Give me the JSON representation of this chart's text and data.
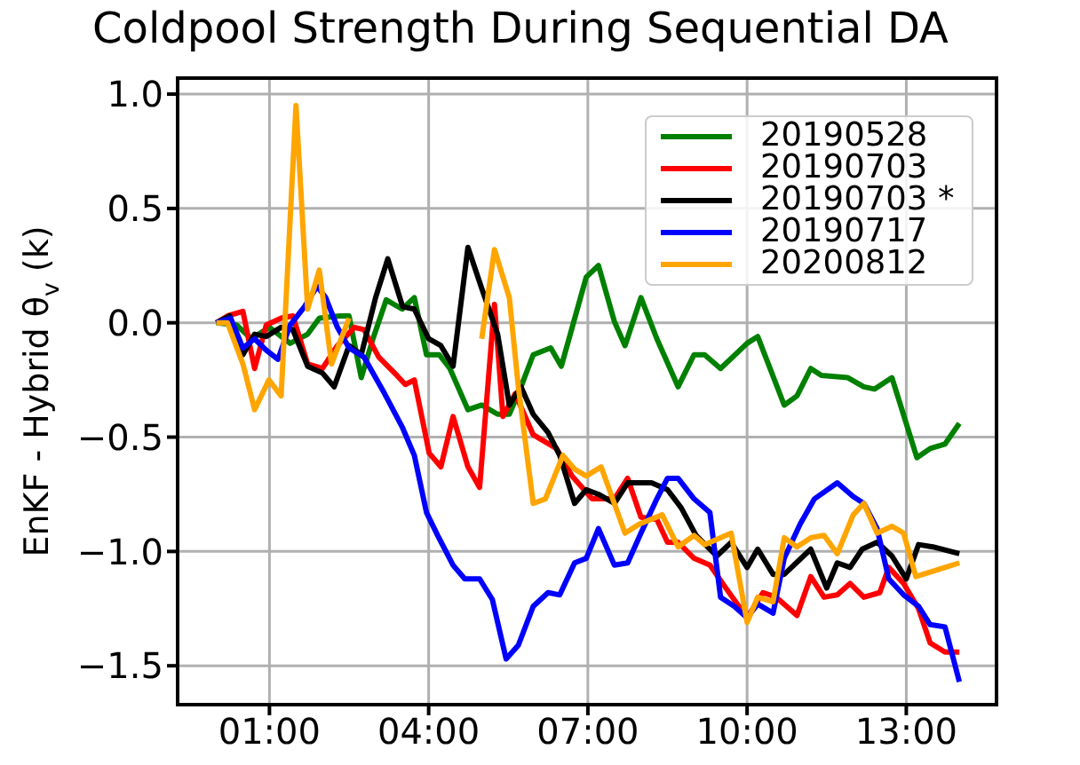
{
  "chart_data": {
    "type": "line",
    "title": "Coldpool Strength During Sequential DA",
    "ylabel": "EnKF - Hybrid θ$_{v}$ (k)",
    "xlim": [
      -0.73,
      14.7
    ],
    "xticks": [
      {
        "value": 1,
        "label": "01:00"
      },
      {
        "value": 4,
        "label": "04:00"
      },
      {
        "value": 7,
        "label": "07:00"
      },
      {
        "value": 10,
        "label": "10:00"
      },
      {
        "value": 13,
        "label": "13:00"
      }
    ],
    "ylim": [
      -1.67,
      1.07
    ],
    "yticks": [
      {
        "value": -1.5,
        "label": "−1.5"
      },
      {
        "value": -1,
        "label": "−1.0"
      },
      {
        "value": -0.5,
        "label": "−0.5"
      },
      {
        "value": 0,
        "label": "0.0"
      },
      {
        "value": 0.5,
        "label": "0.5"
      },
      {
        "value": 1,
        "label": "1.0"
      }
    ],
    "grid": true,
    "legend": "top right",
    "marker": "none",
    "line_style": "solid",
    "series": [
      {
        "name": "20190528",
        "color": "#008000",
        "x": [
          0,
          0.38,
          0.66,
          1.0,
          1.39,
          1.72,
          1.94,
          2.33,
          2.5,
          2.73,
          2.95,
          3.2,
          3.5,
          3.73,
          3.96,
          4.2,
          4.4,
          4.74,
          5.0,
          5.3,
          5.52,
          5.74,
          5.97,
          6.3,
          6.5,
          6.97,
          7.2,
          7.5,
          7.7,
          8.0,
          8.3,
          8.7,
          9.0,
          9.2,
          9.5,
          10.0,
          10.2,
          10.7,
          10.94,
          11.2,
          11.4,
          11.9,
          12.2,
          12.4,
          12.73,
          13.2,
          13.45,
          13.73,
          14.0
        ],
        "values": [
          0,
          -0.01,
          -0.07,
          -0.02,
          -0.09,
          -0.05,
          0.02,
          0.03,
          0.03,
          -0.24,
          -0.07,
          0.1,
          0.06,
          0.11,
          -0.14,
          -0.14,
          -0.2,
          -0.38,
          -0.36,
          -0.4,
          -0.4,
          -0.28,
          -0.14,
          -0.11,
          -0.19,
          0.2,
          0.25,
          0.005,
          -0.1,
          0.11,
          -0.07,
          -0.28,
          -0.14,
          -0.14,
          -0.2,
          -0.09,
          -0.06,
          -0.36,
          -0.32,
          -0.2,
          -0.23,
          -0.24,
          -0.28,
          -0.29,
          -0.24,
          -0.59,
          -0.55,
          -0.53,
          -0.44
        ]
      },
      {
        "name": "20190703",
        "color": "#ff0000",
        "x": [
          0,
          0.21,
          0.5,
          0.72,
          0.94,
          1.22,
          1.44,
          1.72,
          2.0,
          2.28,
          2.6,
          2.78,
          3.06,
          3.4,
          3.56,
          3.73,
          4.01,
          4.23,
          4.46,
          4.74,
          4.96,
          5.24,
          5.4,
          5.63,
          5.97,
          6.41,
          6.7,
          7.08,
          7.5,
          7.75,
          8.0,
          8.3,
          8.5,
          8.7,
          9.0,
          9.3,
          9.6,
          10.0,
          10.3,
          10.55,
          10.94,
          11.2,
          11.45,
          11.7,
          11.94,
          12.2,
          12.5,
          12.67,
          12.95,
          13.23,
          13.45,
          13.73,
          14.0
        ],
        "values": [
          0,
          0.03,
          0.05,
          -0.2,
          -0.01,
          0.02,
          0.03,
          -0.18,
          -0.2,
          -0.1,
          -0.02,
          -0.03,
          -0.15,
          -0.23,
          -0.27,
          -0.25,
          -0.57,
          -0.63,
          -0.41,
          -0.63,
          -0.72,
          0.08,
          -0.41,
          -0.31,
          -0.49,
          -0.55,
          -0.67,
          -0.77,
          -0.77,
          -0.68,
          -0.85,
          -0.86,
          -0.96,
          -0.96,
          -1.03,
          -1.06,
          -1.16,
          -1.29,
          -1.18,
          -1.2,
          -1.28,
          -1.11,
          -1.2,
          -1.19,
          -1.14,
          -1.2,
          -1.18,
          -1.07,
          -1.14,
          -1.25,
          -1.4,
          -1.44,
          -1.44
        ]
      },
      {
        "name": "20190703 *",
        "color": "#000000",
        "x": [
          0,
          0.25,
          0.5,
          0.72,
          0.94,
          1.22,
          1.44,
          1.72,
          2.0,
          2.22,
          2.5,
          2.73,
          3.0,
          3.23,
          3.51,
          3.73,
          4.0,
          4.23,
          4.46,
          4.74,
          5.0,
          5.3,
          5.52,
          5.74,
          5.97,
          6.25,
          6.47,
          6.75,
          6.97,
          7.2,
          7.5,
          7.75,
          8.2,
          8.5,
          8.76,
          9.04,
          9.43,
          9.7,
          10.0,
          10.2,
          10.49,
          10.7,
          11.2,
          11.5,
          11.7,
          11.94,
          12.17,
          12.45,
          12.73,
          13.0,
          13.23,
          13.5,
          14.0
        ],
        "values": [
          0,
          0.03,
          -0.14,
          -0.05,
          -0.06,
          -0.02,
          -0.03,
          -0.19,
          -0.22,
          -0.28,
          -0.1,
          -0.14,
          0.11,
          0.28,
          0.07,
          0.06,
          -0.07,
          -0.1,
          -0.19,
          0.33,
          0.15,
          -0.05,
          -0.36,
          -0.28,
          -0.4,
          -0.48,
          -0.58,
          -0.79,
          -0.73,
          -0.75,
          -0.79,
          -0.7,
          -0.7,
          -0.73,
          -0.81,
          -0.93,
          -1.02,
          -0.96,
          -1.07,
          -0.99,
          -1.1,
          -1.1,
          -0.99,
          -1.16,
          -1.05,
          -1.07,
          -0.99,
          -0.96,
          -1.02,
          -1.12,
          -0.97,
          -0.98,
          -1.01
        ]
      },
      {
        "name": "20190717",
        "color": "#0000ff",
        "x": [
          0,
          0.27,
          0.5,
          0.72,
          0.94,
          1.16,
          1.39,
          1.66,
          1.9,
          2.06,
          2.28,
          2.5,
          2.78,
          3.17,
          3.51,
          3.73,
          3.96,
          4.17,
          4.46,
          4.68,
          4.96,
          5.2,
          5.46,
          5.69,
          5.97,
          6.25,
          6.47,
          6.75,
          6.97,
          7.2,
          7.5,
          7.75,
          8.0,
          8.3,
          8.5,
          8.7,
          9.0,
          9.3,
          9.5,
          9.76,
          10.0,
          10.2,
          10.49,
          10.7,
          11.0,
          11.27,
          11.7,
          12.0,
          12.2,
          12.45,
          12.67,
          12.95,
          13.23,
          13.45,
          13.73,
          14.0
        ],
        "values": [
          0,
          0.02,
          -0.11,
          -0.07,
          -0.12,
          -0.16,
          -0.01,
          0.07,
          0.16,
          0.11,
          -0.02,
          -0.11,
          -0.15,
          -0.31,
          -0.46,
          -0.58,
          -0.83,
          -0.93,
          -1.06,
          -1.12,
          -1.12,
          -1.21,
          -1.47,
          -1.41,
          -1.24,
          -1.18,
          -1.19,
          -1.05,
          -1.03,
          -0.9,
          -1.06,
          -1.05,
          -0.92,
          -0.77,
          -0.68,
          -0.68,
          -0.77,
          -0.83,
          -1.2,
          -1.24,
          -1.29,
          -1.23,
          -1.27,
          -1.03,
          -0.88,
          -0.77,
          -0.7,
          -0.76,
          -0.79,
          -0.9,
          -1.12,
          -1.19,
          -1.24,
          -1.32,
          -1.33,
          -1.57
        ]
      },
      {
        "name": "20200812",
        "color": "#ffa500",
        "x": [
          0,
          0.21,
          0.5,
          0.72,
          0.99,
          1.22,
          1.5,
          1.72,
          1.94,
          2.17,
          2.5,
          3.75,
          5.0,
          5.24,
          5.52,
          5.69,
          5.97,
          6.2,
          6.53,
          6.75,
          6.97,
          7.25,
          7.7,
          7.97,
          8.4,
          8.7,
          9.0,
          9.2,
          9.7,
          10.0,
          10.2,
          10.49,
          10.7,
          10.94,
          11.2,
          11.45,
          11.7,
          12.0,
          12.2,
          12.45,
          12.73,
          12.95,
          13.18,
          13.45,
          13.73,
          14.0
        ],
        "values": [
          0,
          0.0,
          -0.18,
          -0.38,
          -0.25,
          -0.32,
          0.95,
          0.06,
          0.23,
          -0.18,
          0.02,
          null,
          -0.07,
          0.32,
          0.11,
          -0.28,
          -0.79,
          -0.77,
          -0.58,
          -0.64,
          -0.67,
          -0.63,
          -0.92,
          -0.88,
          -0.84,
          -0.98,
          -0.93,
          -0.97,
          -0.92,
          -1.31,
          -1.2,
          -1.22,
          -0.94,
          -0.98,
          -0.94,
          -0.93,
          -1.01,
          -0.84,
          -0.79,
          -0.92,
          -0.89,
          -0.92,
          -1.11,
          -1.09,
          -1.07,
          -1.05
        ]
      }
    ]
  }
}
